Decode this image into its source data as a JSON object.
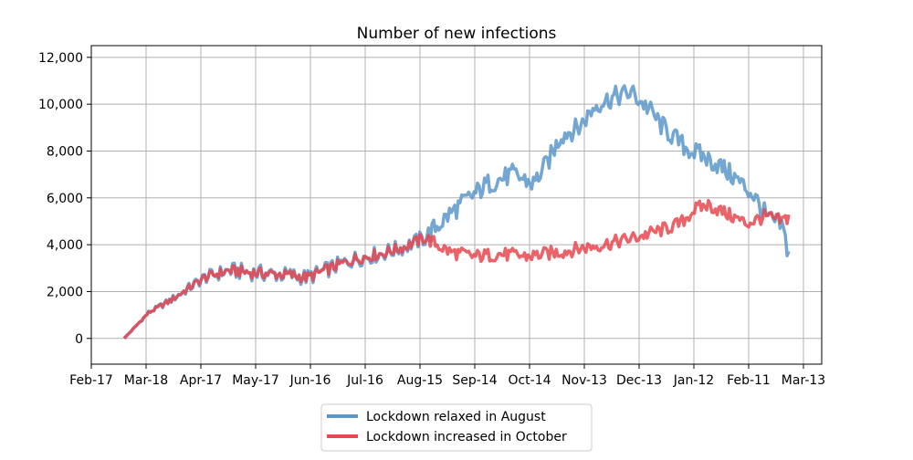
{
  "chart_data": {
    "type": "line",
    "title": "Number of new infections",
    "xlabel": "",
    "ylabel": "",
    "x_tick_labels": [
      "Feb-17",
      "Mar-18",
      "Apr-17",
      "May-17",
      "Jun-16",
      "Jul-16",
      "Aug-15",
      "Sep-14",
      "Oct-14",
      "Nov-13",
      "Dec-13",
      "Jan-12",
      "Feb-11",
      "Mar-13"
    ],
    "y_tick_labels": [
      "0",
      "2,000",
      "4,000",
      "6,000",
      "8,000",
      "10,000",
      "12,000"
    ],
    "y_ticks": [
      0,
      2000,
      4000,
      6000,
      8000,
      10000,
      12000
    ],
    "ylim": [
      -1100,
      12500
    ],
    "grid": true,
    "legend_position": "bottom-center",
    "series": [
      {
        "name": "Lockdown relaxed in August",
        "color": "#5b97c9",
        "knots": [
          [
            0,
            0
          ],
          [
            14,
            1100
          ],
          [
            26,
            1600
          ],
          [
            46,
            2600
          ],
          [
            60,
            2900
          ],
          [
            75,
            2800
          ],
          [
            95,
            2700
          ],
          [
            105,
            2600
          ],
          [
            118,
            3000
          ],
          [
            132,
            3400
          ],
          [
            146,
            3600
          ],
          [
            160,
            3900
          ],
          [
            172,
            4300
          ],
          [
            186,
            5300
          ],
          [
            194,
            5800
          ],
          [
            208,
            6600
          ],
          [
            222,
            7000
          ],
          [
            234,
            6600
          ],
          [
            242,
            7500
          ],
          [
            250,
            8700
          ],
          [
            260,
            9000
          ],
          [
            270,
            10000
          ],
          [
            280,
            10300
          ],
          [
            290,
            10500
          ],
          [
            300,
            9800
          ],
          [
            307,
            9100
          ],
          [
            314,
            8600
          ],
          [
            320,
            8200
          ],
          [
            330,
            7800
          ],
          [
            340,
            7400
          ],
          [
            350,
            6800
          ],
          [
            360,
            6100
          ],
          [
            368,
            5100
          ],
          [
            376,
            4800
          ],
          [
            380,
            3600
          ]
        ],
        "amplitude": 450
      },
      {
        "name": "Lockdown increased in October",
        "color": "#e8474f",
        "knots": [
          [
            0,
            0
          ],
          [
            14,
            1100
          ],
          [
            26,
            1600
          ],
          [
            46,
            2600
          ],
          [
            60,
            2900
          ],
          [
            75,
            2800
          ],
          [
            95,
            2700
          ],
          [
            105,
            2600
          ],
          [
            118,
            3000
          ],
          [
            132,
            3400
          ],
          [
            146,
            3600
          ],
          [
            160,
            3900
          ],
          [
            172,
            4300
          ],
          [
            186,
            3700
          ],
          [
            200,
            3500
          ],
          [
            215,
            3600
          ],
          [
            230,
            3500
          ],
          [
            250,
            3700
          ],
          [
            265,
            3900
          ],
          [
            280,
            4100
          ],
          [
            292,
            4300
          ],
          [
            306,
            4600
          ],
          [
            318,
            4900
          ],
          [
            326,
            5500
          ],
          [
            334,
            5700
          ],
          [
            345,
            5300
          ],
          [
            356,
            4900
          ],
          [
            366,
            5200
          ],
          [
            376,
            5000
          ],
          [
            380,
            5200
          ]
        ],
        "amplitude": 300
      }
    ]
  }
}
